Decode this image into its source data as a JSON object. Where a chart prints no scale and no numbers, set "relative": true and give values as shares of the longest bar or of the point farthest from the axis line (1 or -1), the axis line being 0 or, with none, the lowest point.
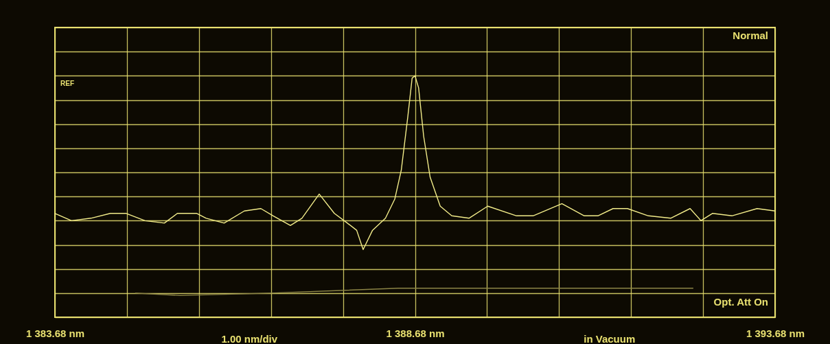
{
  "chart_data": {
    "type": "line",
    "relative": true,
    "grid": true,
    "legend": false,
    "marker": "none",
    "line_style": "solid",
    "xlim": [
      1383.68,
      1393.68
    ],
    "xticks": [
      {
        "value": 1383.68,
        "label": "1 383.68 nm"
      },
      {
        "value": 1384.68,
        "label": null
      },
      {
        "value": 1385.68,
        "label": null
      },
      {
        "value": 1386.68,
        "label": null
      },
      {
        "value": 1387.68,
        "label": null
      },
      {
        "value": 1388.68,
        "label": "1 388.68 nm"
      },
      {
        "value": 1389.68,
        "label": null
      },
      {
        "value": 1390.68,
        "label": null
      },
      {
        "value": 1391.68,
        "label": null
      },
      {
        "value": 1392.68,
        "label": null
      },
      {
        "value": 1393.68,
        "label": "1 393.68 nm"
      }
    ],
    "series": [
      {
        "color": "#f2ec8a",
        "x": [
          1383.68,
          1383.91,
          1384.18,
          1384.45,
          1384.67,
          1384.93,
          1385.2,
          1385.38,
          1385.65,
          1385.78,
          1386.03,
          1386.31,
          1386.54,
          1386.71,
          1386.95,
          1387.11,
          1387.35,
          1387.56,
          1387.74,
          1387.87,
          1387.96,
          1388.09,
          1388.27,
          1388.4,
          1388.49,
          1388.58,
          1388.64,
          1388.68,
          1388.73,
          1388.8,
          1388.89,
          1389.03,
          1389.19,
          1389.43,
          1389.69,
          1390.09,
          1390.32,
          1390.72,
          1391.03,
          1391.22,
          1391.43,
          1391.63,
          1391.92,
          1392.23,
          1392.5,
          1392.65,
          1392.81,
          1393.08,
          1393.43,
          1393.68
        ],
        "values": [
          0.43,
          0.4,
          0.41,
          0.43,
          0.43,
          0.4,
          0.39,
          0.43,
          0.43,
          0.41,
          0.39,
          0.44,
          0.45,
          0.42,
          0.38,
          0.41,
          0.51,
          0.43,
          0.39,
          0.36,
          0.28,
          0.36,
          0.41,
          0.49,
          0.61,
          0.83,
          0.99,
          1,
          0.95,
          0.75,
          0.58,
          0.46,
          0.42,
          0.41,
          0.46,
          0.42,
          0.42,
          0.47,
          0.42,
          0.42,
          0.45,
          0.45,
          0.42,
          0.41,
          0.45,
          0.4,
          0.43,
          0.42,
          0.45,
          0.44
        ]
      },
      {
        "color": "#8c8546",
        "x": [
          1384.8,
          1385.42,
          1386.67,
          1388.45,
          1390.23,
          1392.01,
          1392.54
        ],
        "values": [
          0.1,
          0.09,
          0.1,
          0.12,
          0.12,
          0.12,
          0.12
        ]
      }
    ],
    "annotations": [
      "Normal",
      "REF",
      "Opt. Att On",
      "1.00 nm/div",
      "in Vacuum"
    ]
  }
}
